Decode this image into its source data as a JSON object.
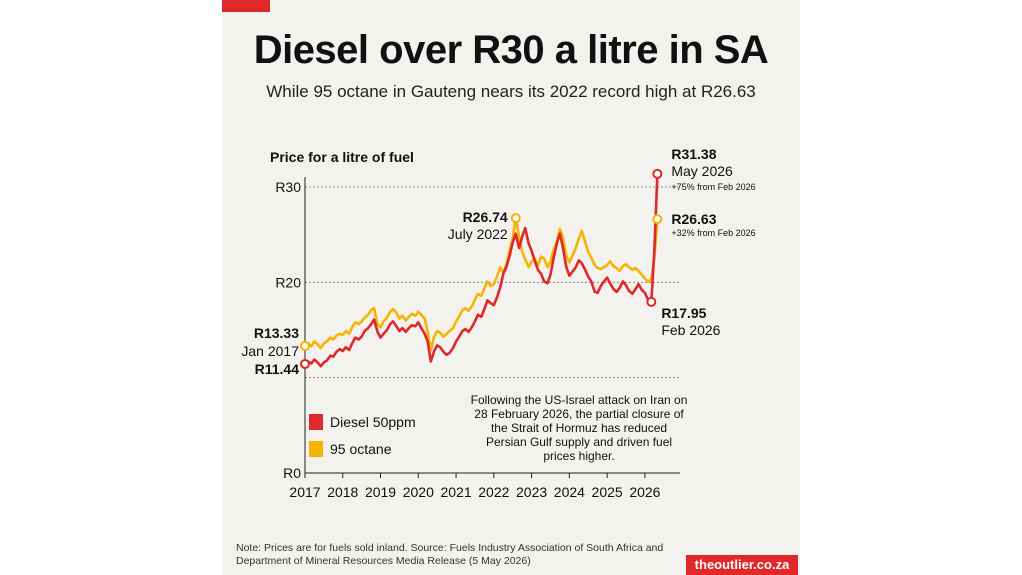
{
  "header": {
    "title": "Diesel over R30 a litre in SA",
    "subtitle": "While 95 octane in Gauteng nears its 2022 record high at R26.63"
  },
  "annotation_text": "Following the US-Israel attack on Iran on 28 February 2026, the partial closure of the Strait of Hormuz has reduced Persian Gulf supply and driven fuel prices higher.",
  "footer": {
    "note": "Note: Prices are for fuels sold inland. Source: Fuels Industry Association of South Africa and Department of Mineral Resources Media Release (5 May 2026)",
    "brand": "theoutlier.co.za"
  },
  "colors": {
    "diesel": "#e0282a",
    "petrol": "#f5b400",
    "brand": "#e0282a",
    "panel": "#f3f2ee"
  },
  "chart_data": {
    "type": "line",
    "ylabel": "Price for a litre of fuel",
    "ylim": [
      0,
      30
    ],
    "xlim": [
      2017,
      2026.4
    ],
    "y_ticks": [
      {
        "value": 0,
        "label": "R0"
      },
      {
        "value": 20,
        "label": "R20"
      },
      {
        "value": 30,
        "label": "R30"
      }
    ],
    "x_ticks": [
      2017,
      2018,
      2019,
      2020,
      2021,
      2022,
      2023,
      2024,
      2025,
      2026
    ],
    "x_tick_labels": [
      "2017",
      "2018",
      "2019",
      "2020",
      "2021",
      "2022",
      "2023",
      "2024",
      "2025",
      "2026"
    ],
    "series": [
      {
        "name": "95 octane",
        "color": "#f5b400",
        "points": [
          [
            2017.0,
            13.33
          ],
          [
            2017.08,
            13.6
          ],
          [
            2017.17,
            13.3
          ],
          [
            2017.25,
            13.8
          ],
          [
            2017.33,
            13.5
          ],
          [
            2017.42,
            13.1
          ],
          [
            2017.5,
            13.6
          ],
          [
            2017.58,
            13.8
          ],
          [
            2017.67,
            14.2
          ],
          [
            2017.75,
            14.0
          ],
          [
            2017.83,
            14.4
          ],
          [
            2017.92,
            14.6
          ],
          [
            2018.0,
            14.5
          ],
          [
            2018.08,
            14.9
          ],
          [
            2018.17,
            14.6
          ],
          [
            2018.25,
            15.3
          ],
          [
            2018.33,
            15.8
          ],
          [
            2018.42,
            15.6
          ],
          [
            2018.5,
            15.9
          ],
          [
            2018.58,
            16.3
          ],
          [
            2018.67,
            16.6
          ],
          [
            2018.75,
            17.1
          ],
          [
            2018.83,
            17.3
          ],
          [
            2018.92,
            15.6
          ],
          [
            2019.0,
            15.3
          ],
          [
            2019.08,
            15.9
          ],
          [
            2019.17,
            16.3
          ],
          [
            2019.25,
            16.9
          ],
          [
            2019.33,
            17.2
          ],
          [
            2019.42,
            16.8
          ],
          [
            2019.5,
            16.2
          ],
          [
            2019.58,
            16.5
          ],
          [
            2019.67,
            16.0
          ],
          [
            2019.75,
            16.4
          ],
          [
            2019.83,
            16.7
          ],
          [
            2019.92,
            16.5
          ],
          [
            2020.0,
            16.9
          ],
          [
            2020.08,
            16.6
          ],
          [
            2020.17,
            16.2
          ],
          [
            2020.25,
            14.8
          ],
          [
            2020.33,
            12.9
          ],
          [
            2020.42,
            14.3
          ],
          [
            2020.5,
            14.9
          ],
          [
            2020.58,
            14.7
          ],
          [
            2020.67,
            14.3
          ],
          [
            2020.75,
            14.6
          ],
          [
            2020.83,
            14.9
          ],
          [
            2020.92,
            15.2
          ],
          [
            2021.0,
            15.9
          ],
          [
            2021.08,
            16.4
          ],
          [
            2021.17,
            17.1
          ],
          [
            2021.25,
            17.3
          ],
          [
            2021.33,
            17.0
          ],
          [
            2021.42,
            17.5
          ],
          [
            2021.5,
            18.2
          ],
          [
            2021.58,
            18.8
          ],
          [
            2021.67,
            18.6
          ],
          [
            2021.75,
            19.4
          ],
          [
            2021.83,
            20.1
          ],
          [
            2021.92,
            19.6
          ],
          [
            2022.0,
            19.8
          ],
          [
            2022.08,
            20.6
          ],
          [
            2022.17,
            21.6
          ],
          [
            2022.25,
            21.0
          ],
          [
            2022.33,
            21.9
          ],
          [
            2022.42,
            23.4
          ],
          [
            2022.5,
            24.6
          ],
          [
            2022.58,
            26.74
          ],
          [
            2022.67,
            24.8
          ],
          [
            2022.75,
            23.2
          ],
          [
            2022.83,
            22.4
          ],
          [
            2022.92,
            21.6
          ],
          [
            2023.0,
            22.2
          ],
          [
            2023.08,
            22.5
          ],
          [
            2023.17,
            21.8
          ],
          [
            2023.25,
            22.7
          ],
          [
            2023.33,
            22.5
          ],
          [
            2023.42,
            21.6
          ],
          [
            2023.5,
            22.2
          ],
          [
            2023.58,
            23.4
          ],
          [
            2023.67,
            24.3
          ],
          [
            2023.75,
            25.6
          ],
          [
            2023.83,
            24.7
          ],
          [
            2023.92,
            22.8
          ],
          [
            2024.0,
            22.1
          ],
          [
            2024.08,
            22.8
          ],
          [
            2024.17,
            23.6
          ],
          [
            2024.25,
            24.6
          ],
          [
            2024.33,
            25.4
          ],
          [
            2024.42,
            24.2
          ],
          [
            2024.5,
            23.2
          ],
          [
            2024.58,
            22.6
          ],
          [
            2024.67,
            21.8
          ],
          [
            2024.75,
            21.5
          ],
          [
            2024.83,
            21.4
          ],
          [
            2024.92,
            21.6
          ],
          [
            2025.0,
            21.8
          ],
          [
            2025.08,
            22.2
          ],
          [
            2025.17,
            21.7
          ],
          [
            2025.25,
            21.5
          ],
          [
            2025.33,
            21.2
          ],
          [
            2025.42,
            21.7
          ],
          [
            2025.5,
            21.9
          ],
          [
            2025.58,
            21.6
          ],
          [
            2025.67,
            21.3
          ],
          [
            2025.75,
            21.5
          ],
          [
            2025.83,
            21.2
          ],
          [
            2025.92,
            20.8
          ],
          [
            2026.0,
            20.4
          ],
          [
            2026.08,
            20.1
          ],
          [
            2026.17,
            20.3
          ],
          [
            2026.25,
            22.5
          ],
          [
            2026.33,
            26.63
          ]
        ]
      },
      {
        "name": "Diesel 50ppm",
        "color": "#e0282a",
        "points": [
          [
            2017.0,
            11.44
          ],
          [
            2017.08,
            11.7
          ],
          [
            2017.17,
            11.5
          ],
          [
            2017.25,
            11.9
          ],
          [
            2017.33,
            11.6
          ],
          [
            2017.42,
            11.2
          ],
          [
            2017.5,
            11.6
          ],
          [
            2017.58,
            11.8
          ],
          [
            2017.67,
            12.3
          ],
          [
            2017.75,
            12.2
          ],
          [
            2017.83,
            12.7
          ],
          [
            2017.92,
            13.0
          ],
          [
            2018.0,
            12.8
          ],
          [
            2018.08,
            13.2
          ],
          [
            2018.17,
            12.9
          ],
          [
            2018.25,
            13.6
          ],
          [
            2018.33,
            14.2
          ],
          [
            2018.42,
            14.0
          ],
          [
            2018.5,
            14.3
          ],
          [
            2018.58,
            14.9
          ],
          [
            2018.67,
            15.2
          ],
          [
            2018.75,
            15.6
          ],
          [
            2018.83,
            16.1
          ],
          [
            2018.92,
            14.8
          ],
          [
            2019.0,
            14.2
          ],
          [
            2019.08,
            14.6
          ],
          [
            2019.17,
            15.0
          ],
          [
            2019.25,
            15.6
          ],
          [
            2019.33,
            15.9
          ],
          [
            2019.42,
            15.4
          ],
          [
            2019.5,
            14.9
          ],
          [
            2019.58,
            15.2
          ],
          [
            2019.67,
            14.8
          ],
          [
            2019.75,
            15.2
          ],
          [
            2019.83,
            15.5
          ],
          [
            2019.92,
            15.4
          ],
          [
            2020.0,
            15.8
          ],
          [
            2020.08,
            15.2
          ],
          [
            2020.17,
            14.6
          ],
          [
            2020.25,
            13.8
          ],
          [
            2020.33,
            11.7
          ],
          [
            2020.42,
            12.8
          ],
          [
            2020.5,
            13.4
          ],
          [
            2020.58,
            13.2
          ],
          [
            2020.67,
            12.7
          ],
          [
            2020.75,
            12.4
          ],
          [
            2020.83,
            12.6
          ],
          [
            2020.92,
            13.1
          ],
          [
            2021.0,
            13.8
          ],
          [
            2021.08,
            14.3
          ],
          [
            2021.17,
            14.9
          ],
          [
            2021.25,
            15.1
          ],
          [
            2021.33,
            14.8
          ],
          [
            2021.42,
            15.3
          ],
          [
            2021.5,
            15.9
          ],
          [
            2021.58,
            16.6
          ],
          [
            2021.67,
            16.4
          ],
          [
            2021.75,
            17.2
          ],
          [
            2021.83,
            18.1
          ],
          [
            2021.92,
            17.8
          ],
          [
            2022.0,
            17.6
          ],
          [
            2022.08,
            18.4
          ],
          [
            2022.17,
            19.5
          ],
          [
            2022.25,
            20.9
          ],
          [
            2022.33,
            21.6
          ],
          [
            2022.42,
            22.8
          ],
          [
            2022.5,
            24.2
          ],
          [
            2022.58,
            25.1
          ],
          [
            2022.67,
            23.6
          ],
          [
            2022.75,
            24.8
          ],
          [
            2022.83,
            25.7
          ],
          [
            2022.92,
            24.1
          ],
          [
            2023.0,
            23.3
          ],
          [
            2023.08,
            22.3
          ],
          [
            2023.17,
            21.3
          ],
          [
            2023.25,
            20.9
          ],
          [
            2023.33,
            20.1
          ],
          [
            2023.42,
            19.9
          ],
          [
            2023.5,
            20.8
          ],
          [
            2023.58,
            22.5
          ],
          [
            2023.67,
            24.1
          ],
          [
            2023.75,
            25.1
          ],
          [
            2023.83,
            23.7
          ],
          [
            2023.92,
            21.6
          ],
          [
            2024.0,
            20.7
          ],
          [
            2024.08,
            21.1
          ],
          [
            2024.17,
            21.6
          ],
          [
            2024.25,
            22.3
          ],
          [
            2024.33,
            22.0
          ],
          [
            2024.42,
            21.3
          ],
          [
            2024.5,
            20.6
          ],
          [
            2024.58,
            20.1
          ],
          [
            2024.67,
            19.0
          ],
          [
            2024.75,
            18.9
          ],
          [
            2024.83,
            19.6
          ],
          [
            2024.92,
            20.1
          ],
          [
            2025.0,
            20.5
          ],
          [
            2025.08,
            19.9
          ],
          [
            2025.17,
            19.3
          ],
          [
            2025.25,
            19.0
          ],
          [
            2025.33,
            19.4
          ],
          [
            2025.42,
            20.1
          ],
          [
            2025.5,
            19.7
          ],
          [
            2025.58,
            19.1
          ],
          [
            2025.67,
            18.8
          ],
          [
            2025.75,
            19.3
          ],
          [
            2025.83,
            19.8
          ],
          [
            2025.92,
            19.2
          ],
          [
            2026.0,
            18.9
          ],
          [
            2026.08,
            18.2
          ],
          [
            2026.17,
            17.95
          ],
          [
            2026.25,
            23.2
          ],
          [
            2026.33,
            31.38
          ]
        ]
      }
    ],
    "callouts": [
      {
        "series": "95 octane",
        "x": 2017.0,
        "y": 13.33,
        "value": "R13.33",
        "date": "Jan 2017"
      },
      {
        "series": "Diesel 50ppm",
        "x": 2017.0,
        "y": 11.44,
        "value": "R11.44",
        "date": ""
      },
      {
        "series": "95 octane",
        "x": 2022.58,
        "y": 26.74,
        "value": "R26.74",
        "date": "July 2022"
      },
      {
        "series": "Diesel 50ppm",
        "x": 2026.17,
        "y": 17.95,
        "value": "R17.95",
        "date": "Feb 2026"
      },
      {
        "series": "Diesel 50ppm",
        "x": 2026.33,
        "y": 31.38,
        "value": "R31.38",
        "date": "May 2026",
        "note": "+75% from Feb 2026"
      },
      {
        "series": "95 octane",
        "x": 2026.33,
        "y": 26.63,
        "value": "R26.63",
        "date": "",
        "note": "+32% from Feb 2026"
      }
    ],
    "legend": {
      "placement": "bottom-left",
      "items": [
        {
          "label": "Diesel 50ppm",
          "color": "#e0282a"
        },
        {
          "label": "95 octane",
          "color": "#f5b400"
        }
      ]
    }
  }
}
